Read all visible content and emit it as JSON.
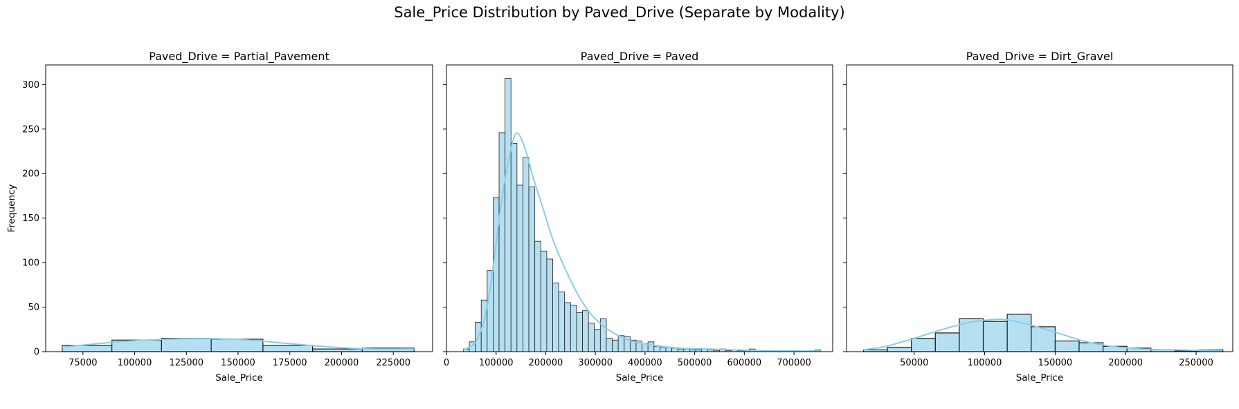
{
  "figure": {
    "title": "Sale_Price Distribution by Paved_Drive (Separate by Modality)"
  },
  "colors": {
    "bar_fill": "#b6e0f2",
    "bar_edge": "#1a1a1a",
    "kde_line": "#87ceeb",
    "axes": "#000000",
    "background": "#ffffff"
  },
  "chart_data": [
    {
      "type": "bar",
      "subtype": "histogram_with_kde",
      "title": "Paved_Drive = Partial_Pavement",
      "xlabel": "Sale_Price",
      "ylabel": "Frequency",
      "xlim": [
        57000,
        244000
      ],
      "ylim": [
        0,
        322
      ],
      "xticks": [
        75000,
        100000,
        125000,
        150000,
        175000,
        200000,
        225000
      ],
      "xtick_labels": [
        "75000",
        "100000",
        "125000",
        "150000",
        "175000",
        "200000",
        "225000"
      ],
      "yticks": [
        0,
        50,
        100,
        150,
        200,
        250,
        300
      ],
      "ytick_labels": [
        "0",
        "50",
        "100",
        "150",
        "200",
        "250",
        "300"
      ],
      "bins": [
        [
          65000,
          89000,
          7
        ],
        [
          89000,
          113000,
          13
        ],
        [
          113000,
          137000,
          15
        ],
        [
          137000,
          162000,
          14
        ],
        [
          162000,
          186000,
          7
        ],
        [
          186000,
          210000,
          3
        ],
        [
          210000,
          235000,
          4
        ]
      ],
      "kde": {
        "x": [
          65000,
          80000,
          95000,
          110000,
          125000,
          140000,
          155000,
          170000,
          185000,
          200000,
          215000,
          235000
        ],
        "y": [
          5,
          8.5,
          11.5,
          13.5,
          14.5,
          14.5,
          13,
          10,
          7,
          4.5,
          3,
          3
        ]
      },
      "grid": false
    },
    {
      "type": "bar",
      "subtype": "histogram_with_kde",
      "title": "Paved_Drive = Paved",
      "xlabel": "Sale_Price",
      "xlim": [
        0,
        778000
      ],
      "ylim": [
        0,
        322
      ],
      "xticks": [
        0,
        100000,
        200000,
        300000,
        400000,
        500000,
        600000,
        700000
      ],
      "xtick_labels": [
        "0",
        "100000",
        "200000",
        "300000",
        "400000",
        "500000",
        "600000",
        "700000"
      ],
      "yticks": [
        0,
        50,
        100,
        150,
        200,
        250,
        300
      ],
      "shared_y": true,
      "bin_start": 34000,
      "bin_width": 12000,
      "counts": [
        3,
        11,
        33,
        58,
        91,
        173,
        246,
        307,
        234,
        187,
        218,
        185,
        124,
        113,
        104,
        77,
        67,
        55,
        52,
        44,
        46,
        32,
        25,
        37,
        15,
        13,
        18,
        17,
        13,
        12,
        9,
        11,
        6,
        5,
        5,
        4,
        3,
        3,
        2,
        2,
        3,
        2,
        1,
        3,
        1,
        2,
        1,
        1,
        3,
        1,
        1,
        1,
        0,
        1,
        0,
        1,
        0,
        0,
        1,
        2
      ],
      "kde": {
        "x": [
          34000,
          60000,
          80000,
          95000,
          110000,
          125000,
          137000,
          146000,
          160000,
          175000,
          195000,
          215000,
          240000,
          265000,
          290000,
          320000,
          350000,
          380000,
          420000,
          470000,
          520000,
          580000,
          650000,
          755000
        ],
        "y": [
          2,
          12,
          45,
          100,
          165,
          215,
          242,
          244,
          225,
          195,
          160,
          125,
          92,
          64,
          43,
          27,
          17,
          11,
          7,
          4,
          3,
          2,
          1,
          0.5
        ]
      },
      "grid": false
    },
    {
      "type": "bar",
      "subtype": "histogram_with_kde",
      "title": "Paved_Drive = Dirt_Gravel",
      "xlabel": "Sale_Price",
      "xlim": [
        2000,
        276000
      ],
      "ylim": [
        0,
        322
      ],
      "xticks": [
        50000,
        100000,
        150000,
        200000,
        250000
      ],
      "xtick_labels": [
        "50000",
        "100000",
        "150000",
        "200000",
        "250000"
      ],
      "yticks": [
        0,
        50,
        100,
        150,
        200,
        250,
        300
      ],
      "shared_y": true,
      "bin_start": 14000,
      "bin_width": 17000,
      "counts": [
        2,
        5,
        15,
        21,
        37,
        34,
        42,
        28,
        12,
        10,
        6,
        4,
        2,
        1,
        2
      ],
      "kde": {
        "x": [
          14000,
          30000,
          50000,
          70000,
          90000,
          105000,
          115000,
          130000,
          150000,
          170000,
          190000,
          210000,
          235000,
          268000
        ],
        "y": [
          2,
          6,
          15,
          25,
          33,
          36,
          36,
          31,
          22,
          12,
          6,
          3,
          2,
          1
        ]
      },
      "grid": false
    }
  ]
}
